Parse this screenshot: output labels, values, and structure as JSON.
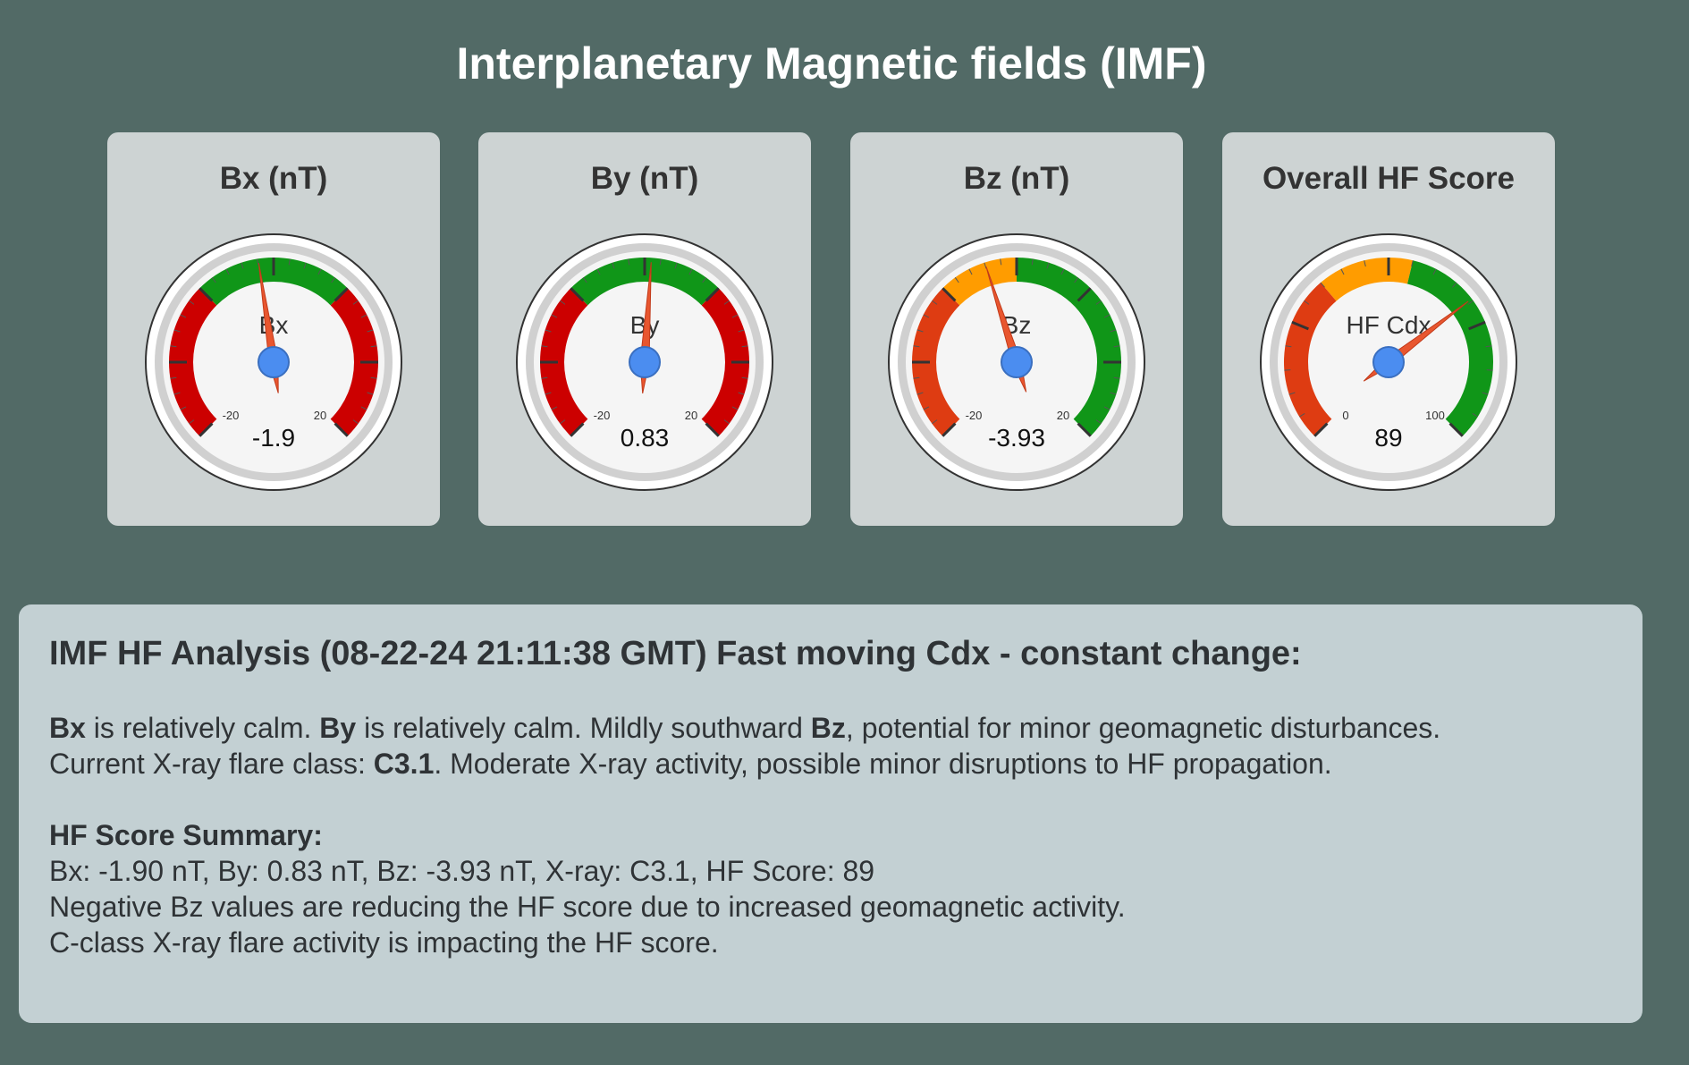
{
  "title": "Interplanetary Magnetic fields (IMF)",
  "colors": {
    "background": "#526a66",
    "card": "#cdd3d3",
    "panel": "#c3d0d3",
    "red": "#cc0000",
    "orange_red": "#de3c12",
    "orange": "#ff9c00",
    "green": "#109618",
    "needle": "#e8562f",
    "hub": "#4b8df0"
  },
  "gauges": [
    {
      "title": "Bx (nT)",
      "label": "Bx",
      "value": -1.9,
      "value_text": "-1.9",
      "min": -30,
      "max": 30,
      "min_label": "-20",
      "max_label": "20",
      "major_ticks": 7,
      "bands": [
        {
          "from": -30,
          "to": -10,
          "color": "#cc0000"
        },
        {
          "from": -10,
          "to": 10,
          "color": "#109618"
        },
        {
          "from": 10,
          "to": 30,
          "color": "#cc0000"
        }
      ]
    },
    {
      "title": "By (nT)",
      "label": "By",
      "value": 0.83,
      "value_text": "0.83",
      "min": -30,
      "max": 30,
      "min_label": "-20",
      "max_label": "20",
      "major_ticks": 7,
      "bands": [
        {
          "from": -30,
          "to": -10,
          "color": "#cc0000"
        },
        {
          "from": -10,
          "to": 10,
          "color": "#109618"
        },
        {
          "from": 10,
          "to": 30,
          "color": "#cc0000"
        }
      ]
    },
    {
      "title": "Bz (nT)",
      "label": "Bz",
      "value": -3.93,
      "value_text": "-3.93",
      "min": -30,
      "max": 30,
      "min_label": "-20",
      "max_label": "20",
      "major_ticks": 7,
      "bands": [
        {
          "from": -30,
          "to": -10,
          "color": "#de3c12"
        },
        {
          "from": -10,
          "to": 0,
          "color": "#ff9c00"
        },
        {
          "from": 0,
          "to": 30,
          "color": "#109618"
        }
      ]
    },
    {
      "title": "Overall HF Score",
      "label": "HF Cdx",
      "value": 89,
      "value_text": "89",
      "min": -50,
      "max": 150,
      "min_label": "0",
      "max_label": "100",
      "major_ticks": 5,
      "bands": [
        {
          "from": -50,
          "to": 20,
          "color": "#de3c12"
        },
        {
          "from": 20,
          "to": 60,
          "color": "#ff9c00"
        },
        {
          "from": 60,
          "to": 150,
          "color": "#109618"
        }
      ]
    }
  ],
  "analysis": {
    "heading": "IMF HF Analysis (08-22-24 21:11:38 GMT) Fast moving Cdx - constant change:",
    "line1": {
      "bx": "Bx",
      "bx_text": " is relatively calm. ",
      "by": "By",
      "by_text": " is relatively calm. Mildly southward ",
      "bz": "Bz",
      "bz_text": ", potential for minor geomagnetic disturbances."
    },
    "line2": {
      "prefix": "Current X-ray flare class: ",
      "flare_class": "C3.1",
      "suffix": ". Moderate X-ray activity, possible minor disruptions to HF propagation."
    },
    "summary_heading": "HF Score Summary:",
    "summary_values": "Bx: -1.90 nT, By: 0.83 nT, Bz: -3.93 nT, X-ray: C3.1, HF Score: 89",
    "summary_bz_note": "Negative Bz values are reducing the HF score due to increased geomagnetic activity.",
    "summary_xray_note": "C-class X-ray flare activity is impacting the HF score."
  }
}
